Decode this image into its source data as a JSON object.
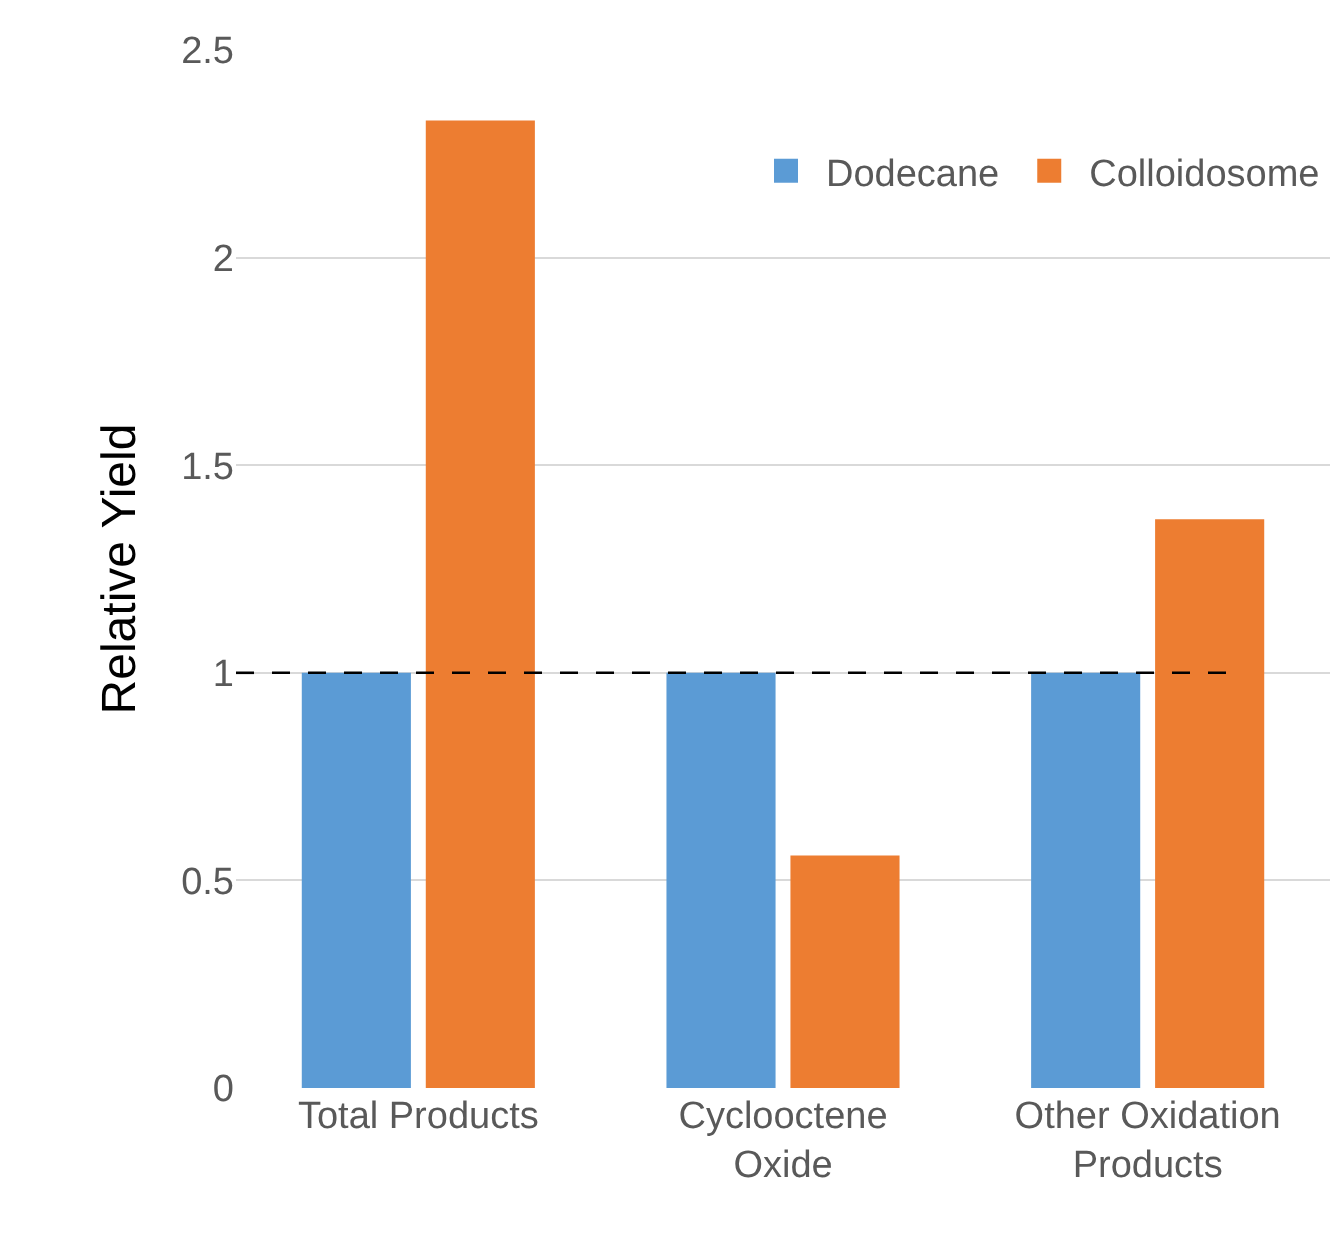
{
  "chart_data": {
    "type": "bar",
    "ylabel": "Relative Yield",
    "categories": [
      "Total Products",
      "Cyclooctene Oxide",
      "Other Oxidation Products"
    ],
    "series": [
      {
        "name": "Dodecane",
        "color": "#5b9bd5",
        "values": [
          1,
          1,
          1
        ]
      },
      {
        "name": "Colloidosome",
        "color": "#ed7d31",
        "values": [
          2.33,
          0.56,
          1.37
        ]
      }
    ],
    "ylim": [
      0,
      2.5
    ],
    "yticks": [
      0,
      0.5,
      1,
      1.5,
      2,
      2.5
    ],
    "grid": "y",
    "legend": "top right",
    "ref_lines": [
      {
        "axis": "y",
        "value": 1,
        "color": "#000000",
        "line_style": "dashed"
      }
    ]
  }
}
